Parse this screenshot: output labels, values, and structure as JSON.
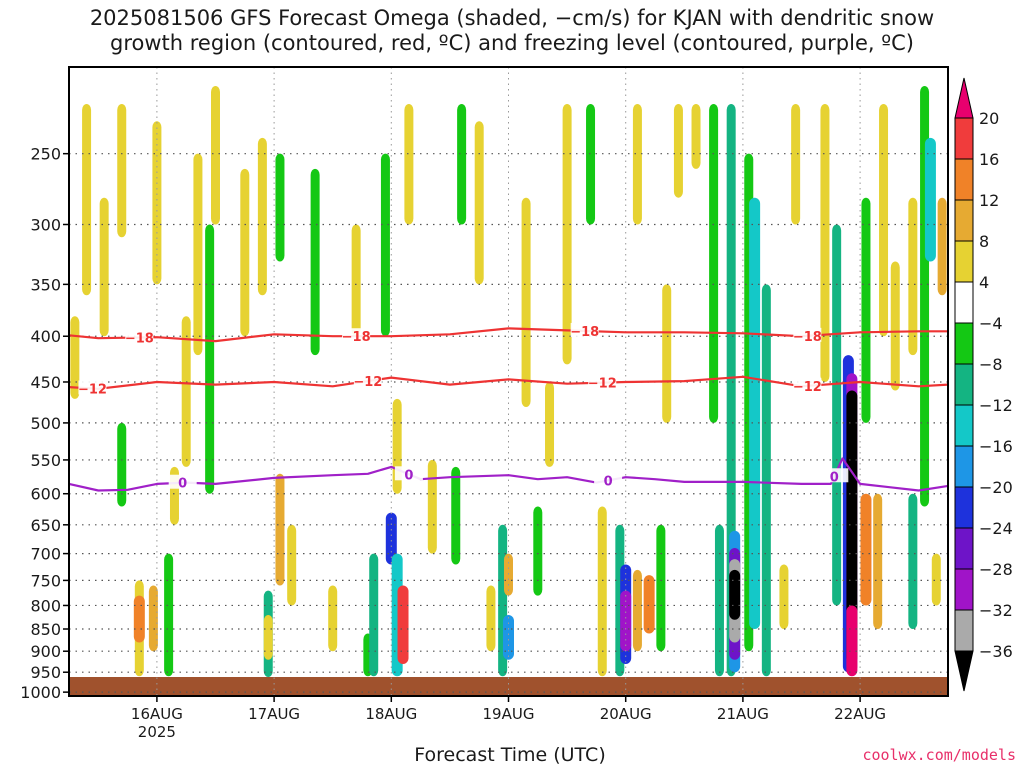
{
  "page": {
    "title_line1": "2025081506 GFS Forecast Omega (shaded, −cm/s) for KJAN with dendritic snow",
    "title_line2": "growth region (contoured, red, ºC) and freezing level (contoured, purple, ºC)",
    "credit": "coolwx.com/models"
  },
  "chart_data": {
    "type": "heatmap",
    "title": "2025081506 GFS Forecast Omega (shaded, −cm/s) for KJAN with dendritic snow growth region (contoured, red, ºC) and freezing level (contoured, purple, ºC)",
    "xlabel": "Forecast Time (UTC)",
    "ylabel": "",
    "y_scale": "log-pressure",
    "y_inverted": true,
    "y_ticks": [
      250,
      300,
      350,
      400,
      450,
      500,
      550,
      600,
      650,
      700,
      750,
      800,
      850,
      900,
      950,
      1000
    ],
    "y_range": [
      200,
      1010
    ],
    "x_ticks": [
      {
        "label": "16AUG",
        "sublabel": "2025",
        "day": 1.0
      },
      {
        "label": "17AUG",
        "sublabel": "",
        "day": 2.0
      },
      {
        "label": "18AUG",
        "sublabel": "",
        "day": 3.0
      },
      {
        "label": "19AUG",
        "sublabel": "",
        "day": 4.0
      },
      {
        "label": "20AUG",
        "sublabel": "",
        "day": 5.0
      },
      {
        "label": "21AUG",
        "sublabel": "",
        "day": 6.0
      },
      {
        "label": "22AUG",
        "sublabel": "",
        "day": 7.0
      }
    ],
    "x_range": [
      0.25,
      7.75
    ],
    "grid": true,
    "colorbar": {
      "labels": [
        "20",
        "16",
        "12",
        "8",
        "4",
        "−4",
        "−8",
        "−12",
        "−16",
        "−20",
        "−24",
        "−28",
        "−32",
        "−36"
      ],
      "colors": [
        "#e8006e",
        "#f03c3c",
        "#f08228",
        "#e6aa32",
        "#e6d232",
        "#ffffff",
        "#14c814",
        "#14b482",
        "#14c8c8",
        "#1e96e6",
        "#1e32dc",
        "#6e14c8",
        "#a014c8",
        "#aaaaaa",
        "#000000"
      ]
    },
    "contours": [
      {
        "name": "-18",
        "color": "#ee3333",
        "label": "−18",
        "points": [
          [
            0.25,
            399
          ],
          [
            0.5,
            402
          ],
          [
            1.0,
            401
          ],
          [
            1.5,
            405
          ],
          [
            2.0,
            398
          ],
          [
            2.5,
            400
          ],
          [
            3.0,
            400
          ],
          [
            3.5,
            398
          ],
          [
            4.0,
            392
          ],
          [
            4.5,
            394
          ],
          [
            5.0,
            396
          ],
          [
            5.5,
            396
          ],
          [
            6.0,
            397
          ],
          [
            6.5,
            400
          ],
          [
            7.0,
            396
          ],
          [
            7.5,
            395
          ],
          [
            7.75,
            395
          ]
        ],
        "label_days": [
          0.85,
          2.7,
          4.65,
          6.55
        ]
      },
      {
        "name": "-12",
        "color": "#ee3333",
        "label": "−12",
        "points": [
          [
            0.25,
            456
          ],
          [
            0.5,
            458
          ],
          [
            1.0,
            450
          ],
          [
            1.5,
            453
          ],
          [
            2.0,
            450
          ],
          [
            2.5,
            455
          ],
          [
            3.0,
            445
          ],
          [
            3.5,
            453
          ],
          [
            4.0,
            447
          ],
          [
            4.5,
            452
          ],
          [
            5.0,
            450
          ],
          [
            5.5,
            449
          ],
          [
            6.0,
            444
          ],
          [
            6.5,
            455
          ],
          [
            7.0,
            450
          ],
          [
            7.5,
            455
          ],
          [
            7.75,
            453
          ]
        ],
        "label_days": [
          0.45,
          2.8,
          4.8,
          6.55
        ]
      },
      {
        "name": "0",
        "color": "#a020c8",
        "label": "0",
        "points": [
          [
            0.25,
            585
          ],
          [
            0.5,
            595
          ],
          [
            0.75,
            594
          ],
          [
            1.0,
            585
          ],
          [
            1.25,
            583
          ],
          [
            1.5,
            585
          ],
          [
            2.0,
            576
          ],
          [
            2.5,
            572
          ],
          [
            2.8,
            570
          ],
          [
            3.0,
            560
          ],
          [
            3.25,
            578
          ],
          [
            3.5,
            575
          ],
          [
            4.0,
            572
          ],
          [
            4.25,
            578
          ],
          [
            4.5,
            575
          ],
          [
            4.75,
            583
          ],
          [
            5.0,
            575
          ],
          [
            5.25,
            578
          ],
          [
            5.5,
            582
          ],
          [
            6.0,
            582
          ],
          [
            6.5,
            585
          ],
          [
            6.75,
            585
          ],
          [
            6.85,
            548
          ],
          [
            7.0,
            585
          ],
          [
            7.25,
            590
          ],
          [
            7.5,
            595
          ],
          [
            7.75,
            588
          ]
        ],
        "label_days": [
          1.22,
          3.15,
          4.85,
          6.78
        ]
      }
    ],
    "cells": [
      {
        "day": 0.3,
        "p_top": 380,
        "p_bot": 470,
        "value": 5
      },
      {
        "day": 0.4,
        "p_top": 220,
        "p_bot": 360,
        "value": 5
      },
      {
        "day": 0.55,
        "p_top": 280,
        "p_bot": 400,
        "value": 5
      },
      {
        "day": 0.7,
        "p_top": 220,
        "p_bot": 310,
        "value": 5
      },
      {
        "day": 0.7,
        "p_top": 500,
        "p_bot": 620,
        "value": -5
      },
      {
        "day": 0.85,
        "p_top": 750,
        "p_bot": 960,
        "value": 6
      },
      {
        "day": 0.85,
        "p_top": 780,
        "p_bot": 880,
        "value": 14
      },
      {
        "day": 0.97,
        "p_top": 760,
        "p_bot": 900,
        "value": 9
      },
      {
        "day": 1.0,
        "p_top": 230,
        "p_bot": 350,
        "value": 5
      },
      {
        "day": 1.1,
        "p_top": 700,
        "p_bot": 960,
        "value": -6
      },
      {
        "day": 1.15,
        "p_top": 560,
        "p_bot": 650,
        "value": 5
      },
      {
        "day": 1.25,
        "p_top": 380,
        "p_bot": 560,
        "value": 5
      },
      {
        "day": 1.35,
        "p_top": 250,
        "p_bot": 420,
        "value": 5
      },
      {
        "day": 1.45,
        "p_top": 300,
        "p_bot": 600,
        "value": -6
      },
      {
        "day": 1.5,
        "p_top": 210,
        "p_bot": 300,
        "value": 5
      },
      {
        "day": 1.75,
        "p_top": 260,
        "p_bot": 400,
        "value": 5
      },
      {
        "day": 1.9,
        "p_top": 240,
        "p_bot": 360,
        "value": 5
      },
      {
        "day": 1.95,
        "p_top": 770,
        "p_bot": 990,
        "value": -9
      },
      {
        "day": 1.95,
        "p_top": 820,
        "p_bot": 920,
        "value": 6
      },
      {
        "day": 2.05,
        "p_top": 570,
        "p_bot": 760,
        "value": 9
      },
      {
        "day": 2.05,
        "p_top": 250,
        "p_bot": 330,
        "value": -6
      },
      {
        "day": 2.15,
        "p_top": 650,
        "p_bot": 800,
        "value": 5
      },
      {
        "day": 2.35,
        "p_top": 260,
        "p_bot": 420,
        "value": -5
      },
      {
        "day": 2.5,
        "p_top": 760,
        "p_bot": 900,
        "value": 5
      },
      {
        "day": 2.7,
        "p_top": 300,
        "p_bot": 400,
        "value": 5
      },
      {
        "day": 2.8,
        "p_top": 860,
        "p_bot": 960,
        "value": -7
      },
      {
        "day": 2.85,
        "p_top": 700,
        "p_bot": 960,
        "value": -9
      },
      {
        "day": 2.95,
        "p_top": 250,
        "p_bot": 400,
        "value": -6
      },
      {
        "day": 3.0,
        "p_top": 630,
        "p_bot": 720,
        "value": -22
      },
      {
        "day": 3.05,
        "p_top": 700,
        "p_bot": 960,
        "value": -13
      },
      {
        "day": 3.1,
        "p_top": 760,
        "p_bot": 930,
        "value": 17
      },
      {
        "day": 3.05,
        "p_top": 470,
        "p_bot": 600,
        "value": 5
      },
      {
        "day": 3.15,
        "p_top": 220,
        "p_bot": 300,
        "value": 5
      },
      {
        "day": 3.35,
        "p_top": 550,
        "p_bot": 700,
        "value": 5
      },
      {
        "day": 3.55,
        "p_top": 560,
        "p_bot": 720,
        "value": -6
      },
      {
        "day": 3.6,
        "p_top": 220,
        "p_bot": 300,
        "value": -6
      },
      {
        "day": 3.75,
        "p_top": 230,
        "p_bot": 350,
        "value": 5
      },
      {
        "day": 3.85,
        "p_top": 760,
        "p_bot": 900,
        "value": 5
      },
      {
        "day": 3.95,
        "p_top": 650,
        "p_bot": 960,
        "value": -9
      },
      {
        "day": 4.0,
        "p_top": 820,
        "p_bot": 920,
        "value": -18
      },
      {
        "day": 4.0,
        "p_top": 700,
        "p_bot": 780,
        "value": 9
      },
      {
        "day": 4.15,
        "p_top": 280,
        "p_bot": 480,
        "value": 5
      },
      {
        "day": 4.25,
        "p_top": 620,
        "p_bot": 780,
        "value": -6
      },
      {
        "day": 4.35,
        "p_top": 450,
        "p_bot": 560,
        "value": 5
      },
      {
        "day": 4.5,
        "p_top": 220,
        "p_bot": 430,
        "value": 5
      },
      {
        "day": 4.7,
        "p_top": 220,
        "p_bot": 300,
        "value": -6
      },
      {
        "day": 4.8,
        "p_top": 620,
        "p_bot": 960,
        "value": 5
      },
      {
        "day": 4.95,
        "p_top": 650,
        "p_bot": 960,
        "value": -9
      },
      {
        "day": 5.0,
        "p_top": 720,
        "p_bot": 930,
        "value": -22
      },
      {
        "day": 5.0,
        "p_top": 770,
        "p_bot": 900,
        "value": -30
      },
      {
        "day": 5.1,
        "p_top": 730,
        "p_bot": 900,
        "value": 9
      },
      {
        "day": 5.2,
        "p_top": 740,
        "p_bot": 860,
        "value": 14
      },
      {
        "day": 5.3,
        "p_top": 650,
        "p_bot": 900,
        "value": -6
      },
      {
        "day": 5.1,
        "p_top": 220,
        "p_bot": 300,
        "value": 5
      },
      {
        "day": 5.35,
        "p_top": 350,
        "p_bot": 500,
        "value": 5
      },
      {
        "day": 5.45,
        "p_top": 220,
        "p_bot": 280,
        "value": 5
      },
      {
        "day": 5.6,
        "p_top": 220,
        "p_bot": 260,
        "value": 5
      },
      {
        "day": 5.75,
        "p_top": 220,
        "p_bot": 500,
        "value": -6
      },
      {
        "day": 5.8,
        "p_top": 650,
        "p_bot": 960,
        "value": -10
      },
      {
        "day": 5.9,
        "p_top": 220,
        "p_bot": 960,
        "value": -9
      },
      {
        "day": 5.93,
        "p_top": 660,
        "p_bot": 950,
        "value": -17
      },
      {
        "day": 5.93,
        "p_top": 690,
        "p_bot": 920,
        "value": -26
      },
      {
        "day": 5.93,
        "p_top": 710,
        "p_bot": 880,
        "value": -33
      },
      {
        "day": 5.93,
        "p_top": 730,
        "p_bot": 830,
        "value": -38
      },
      {
        "day": 6.05,
        "p_top": 250,
        "p_bot": 900,
        "value": -6
      },
      {
        "day": 6.1,
        "p_top": 280,
        "p_bot": 850,
        "value": -13
      },
      {
        "day": 6.2,
        "p_top": 350,
        "p_bot": 960,
        "value": -9
      },
      {
        "day": 6.35,
        "p_top": 720,
        "p_bot": 850,
        "value": 5
      },
      {
        "day": 6.45,
        "p_top": 220,
        "p_bot": 300,
        "value": 5
      },
      {
        "day": 6.7,
        "p_top": 220,
        "p_bot": 450,
        "value": 5
      },
      {
        "day": 6.8,
        "p_top": 300,
        "p_bot": 800,
        "value": -9
      },
      {
        "day": 6.9,
        "p_top": 420,
        "p_bot": 950,
        "value": -20
      },
      {
        "day": 6.93,
        "p_top": 440,
        "p_bot": 950,
        "value": -28
      },
      {
        "day": 6.93,
        "p_top": 460,
        "p_bot": 930,
        "value": -38
      },
      {
        "day": 6.93,
        "p_top": 800,
        "p_bot": 960,
        "value": 20
      },
      {
        "day": 7.05,
        "p_top": 600,
        "p_bot": 800,
        "value": 14
      },
      {
        "day": 7.05,
        "p_top": 280,
        "p_bot": 500,
        "value": -6
      },
      {
        "day": 7.15,
        "p_top": 600,
        "p_bot": 850,
        "value": 8
      },
      {
        "day": 7.2,
        "p_top": 220,
        "p_bot": 400,
        "value": 5
      },
      {
        "day": 7.3,
        "p_top": 330,
        "p_bot": 460,
        "value": 5
      },
      {
        "day": 7.45,
        "p_top": 600,
        "p_bot": 850,
        "value": -10
      },
      {
        "day": 7.45,
        "p_top": 280,
        "p_bot": 420,
        "value": 5
      },
      {
        "day": 7.55,
        "p_top": 210,
        "p_bot": 620,
        "value": -7
      },
      {
        "day": 7.6,
        "p_top": 240,
        "p_bot": 330,
        "value": -14
      },
      {
        "day": 7.65,
        "p_top": 700,
        "p_bot": 800,
        "value": 5
      },
      {
        "day": 7.7,
        "p_top": 280,
        "p_bot": 360,
        "value": 9
      }
    ]
  }
}
